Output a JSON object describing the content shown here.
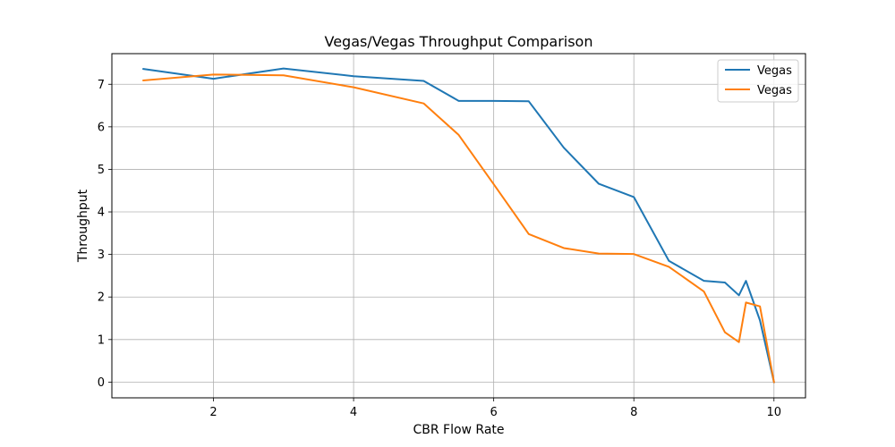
{
  "chart_data": {
    "type": "line",
    "title": "Vegas/Vegas Throughput Comparison",
    "xlabel": "CBR Flow Rate",
    "ylabel": "Throughput",
    "xlim": [
      0.55,
      10.45
    ],
    "ylim": [
      -0.37,
      7.72
    ],
    "xticks": [
      2,
      4,
      6,
      8,
      10
    ],
    "yticks": [
      0,
      1,
      2,
      3,
      4,
      5,
      6,
      7
    ],
    "grid": true,
    "legend_position": "top-right",
    "series": [
      {
        "name": "Vegas",
        "color": "#1f77b4",
        "x": [
          1,
          2,
          3,
          4,
          5,
          5.5,
          6,
          6.5,
          7,
          7.5,
          8,
          8.5,
          9,
          9.3,
          9.5,
          9.6,
          9.8,
          10
        ],
        "y": [
          7.36,
          7.13,
          7.37,
          7.19,
          7.08,
          6.61,
          6.61,
          6.6,
          5.51,
          4.66,
          4.35,
          2.85,
          2.38,
          2.34,
          2.04,
          2.38,
          1.45,
          0.0
        ]
      },
      {
        "name": "Vegas",
        "color": "#ff7f0e",
        "x": [
          1,
          2,
          3,
          4,
          5,
          5.5,
          6,
          6.5,
          7,
          7.5,
          8,
          8.5,
          9,
          9.3,
          9.5,
          9.6,
          9.8,
          10
        ],
        "y": [
          7.09,
          7.23,
          7.21,
          6.93,
          6.55,
          5.81,
          4.65,
          3.48,
          3.15,
          3.02,
          3.01,
          2.71,
          2.13,
          1.17,
          0.94,
          1.87,
          1.78,
          0.0
        ]
      }
    ]
  }
}
